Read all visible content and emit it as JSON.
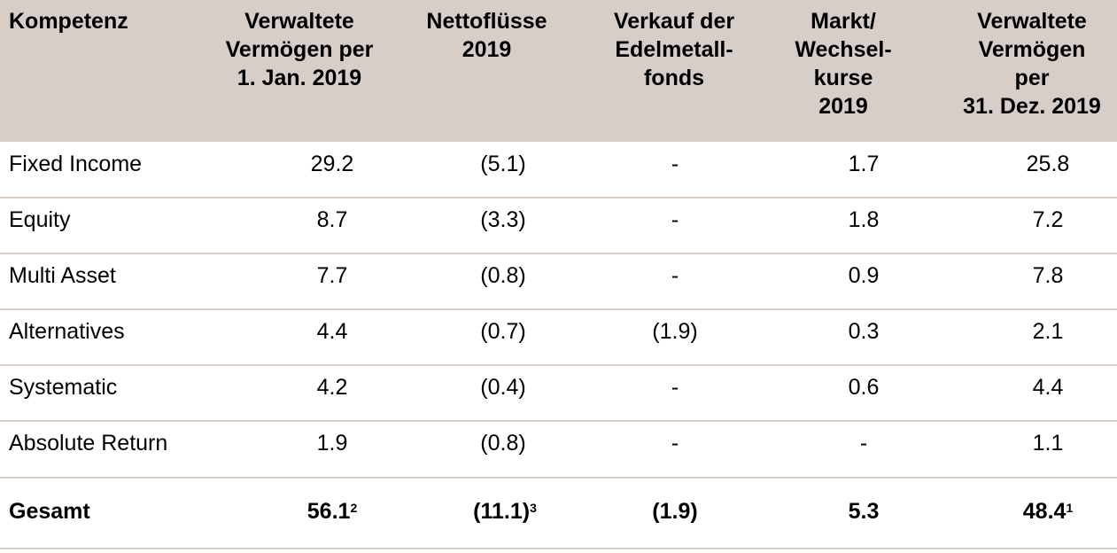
{
  "header": {
    "col1": "Kompetenz",
    "col2": "Verwaltete\nVermögen per\n1. Jan. 2019",
    "col3": "Nettoflüsse\n2019",
    "col4": "Verkauf der\nEdelmetall-\nfonds",
    "col5": "Markt/\nWechsel-\nkurse\n2019",
    "col6": "Verwaltete\nVermögen\nper\n31. Dez. 2019"
  },
  "rows": [
    {
      "name": "Fixed Income",
      "c2": "29.2",
      "c3": "(5.1)",
      "c4": "-",
      "c5": "1.7",
      "c6": "25.8"
    },
    {
      "name": "Equity",
      "c2": "8.7",
      "c3": "(3.3)",
      "c4": "-",
      "c5": "1.8",
      "c6": "7.2"
    },
    {
      "name": "Multi Asset",
      "c2": "7.7",
      "c3": "(0.8)",
      "c4": "-",
      "c5": "0.9",
      "c6": "7.8"
    },
    {
      "name": "Alternatives",
      "c2": "4.4",
      "c3": "(0.7)",
      "c4": "(1.9)",
      "c5": "0.3",
      "c6": "2.1"
    },
    {
      "name": "Systematic",
      "c2": "4.2",
      "c3": "(0.4)",
      "c4": "-",
      "c5": "0.6",
      "c6": "4.4"
    },
    {
      "name": "Absolute Return",
      "c2": "1.9",
      "c3": "(0.8)",
      "c4": "-",
      "c5": "-",
      "c6": "1.1"
    }
  ],
  "total": {
    "name": "Gesamt",
    "c2": "56.1",
    "c2_sup": "2",
    "c3": "(11.1)",
    "c3_sup": "3",
    "c4": "(1.9)",
    "c5": "5.3",
    "c6": "48.4",
    "c6_sup": "1"
  }
}
